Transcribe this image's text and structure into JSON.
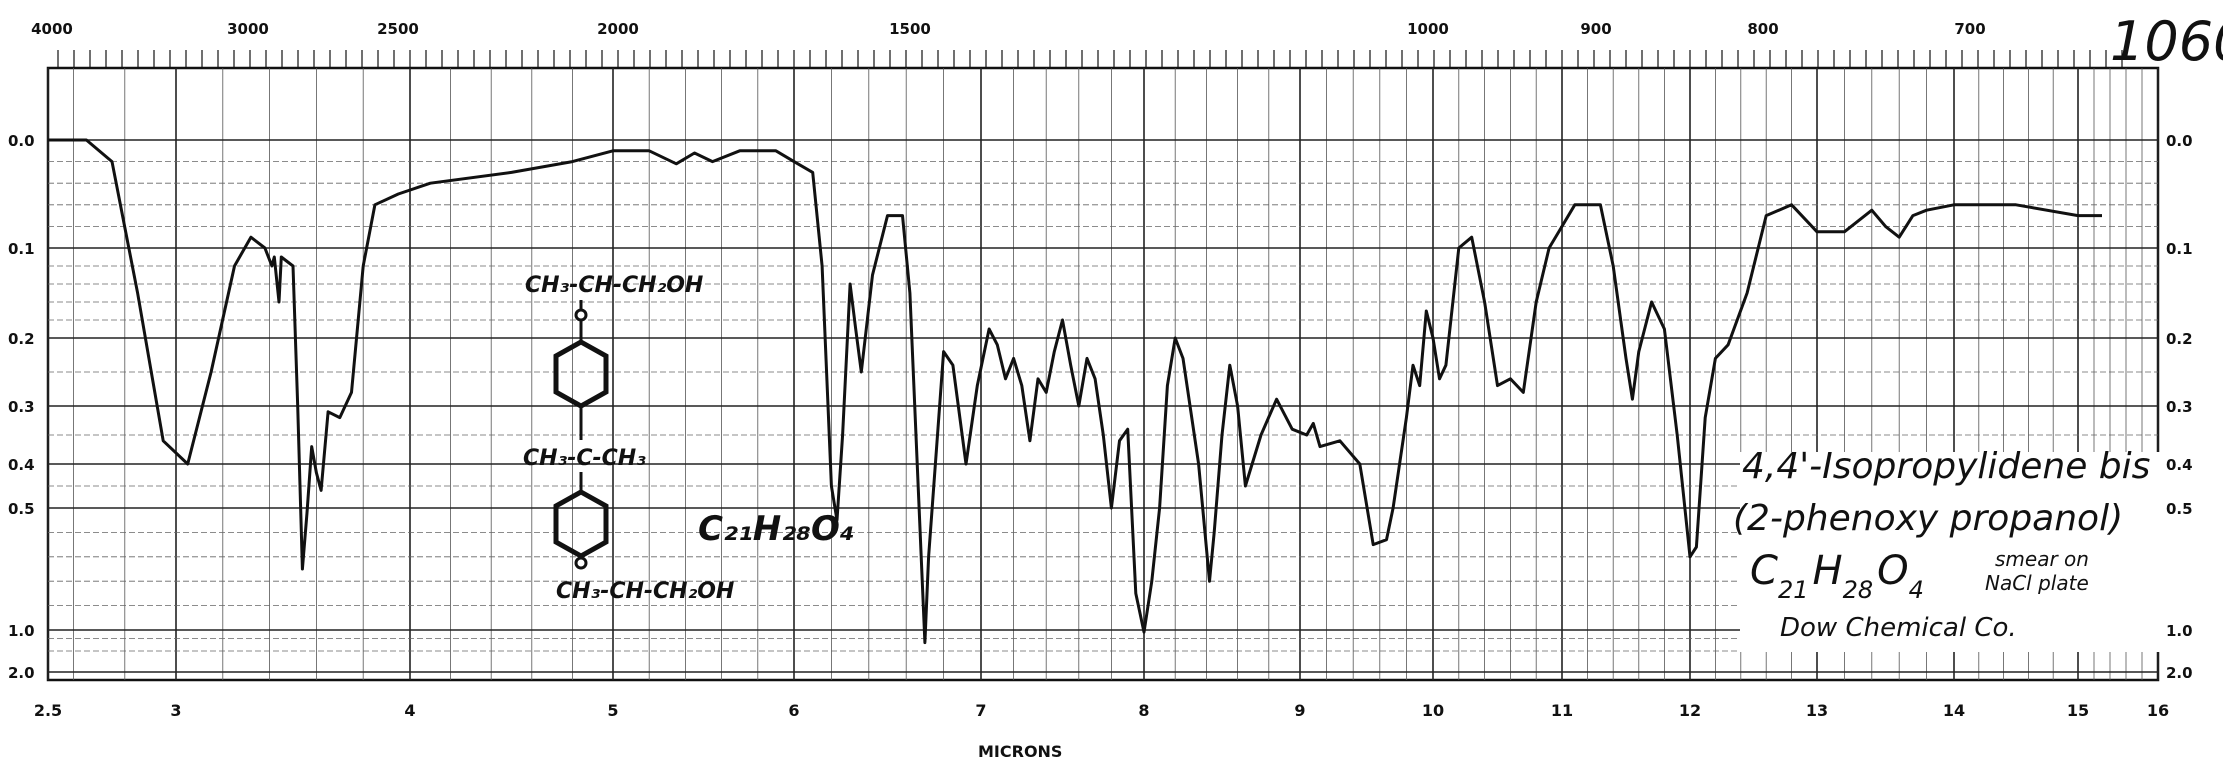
{
  "sheet_number": "1060",
  "chart_data": {
    "type": "line",
    "title": "",
    "xlabel": "MICRONS",
    "ylabel": "",
    "x_axis": {
      "unit": "microns",
      "range": [
        2.5,
        16
      ],
      "ticks": [
        "2.5",
        "3",
        "4",
        "5",
        "6",
        "7",
        "8",
        "9",
        "10",
        "11",
        "12",
        "13",
        "14",
        "15",
        "16"
      ]
    },
    "top_axis": {
      "unit": "wavenumber (cm-1)",
      "ticks": [
        "4000",
        "3000",
        "2500",
        "2000",
        "1500",
        "1000",
        "900",
        "800",
        "700"
      ]
    },
    "y_axis": {
      "unit": "absorbance",
      "scale": "nonlinear",
      "range": [
        0,
        2.0
      ],
      "left_ticks": [
        "0.0",
        "0.1",
        "0.2",
        "0.3",
        "0.4",
        "0.5",
        "1.0",
        "2.0"
      ],
      "right_ticks": [
        "0.0",
        "0.1",
        "0.2",
        "0.3",
        "0.4",
        "0.5",
        "1.0",
        "2.0"
      ]
    },
    "grid": true,
    "series": [
      {
        "points": [
          [
            2.5,
            0.0
          ],
          [
            2.65,
            0.0
          ],
          [
            2.75,
            0.02
          ],
          [
            2.85,
            0.15
          ],
          [
            2.95,
            0.36
          ],
          [
            3.05,
            0.4
          ],
          [
            3.15,
            0.25
          ],
          [
            3.25,
            0.12
          ],
          [
            3.32,
            0.09
          ],
          [
            3.38,
            0.1
          ],
          [
            3.41,
            0.12
          ],
          [
            3.42,
            0.11
          ],
          [
            3.44,
            0.16
          ],
          [
            3.45,
            0.11
          ],
          [
            3.5,
            0.12
          ],
          [
            3.52,
            0.3
          ],
          [
            3.54,
            0.75
          ],
          [
            3.56,
            0.52
          ],
          [
            3.58,
            0.37
          ],
          [
            3.6,
            0.42
          ],
          [
            3.62,
            0.46
          ],
          [
            3.65,
            0.31
          ],
          [
            3.7,
            0.32
          ],
          [
            3.75,
            0.28
          ],
          [
            3.8,
            0.12
          ],
          [
            3.85,
            0.06
          ],
          [
            3.95,
            0.05
          ],
          [
            4.1,
            0.04
          ],
          [
            4.5,
            0.03
          ],
          [
            4.8,
            0.02
          ],
          [
            5.0,
            0.01
          ],
          [
            5.2,
            0.01
          ],
          [
            5.35,
            0.022
          ],
          [
            5.45,
            0.012
          ],
          [
            5.55,
            0.02
          ],
          [
            5.7,
            0.01
          ],
          [
            5.9,
            0.01
          ],
          [
            6.0,
            0.02
          ],
          [
            6.1,
            0.03
          ],
          [
            6.15,
            0.12
          ],
          [
            6.2,
            0.45
          ],
          [
            6.23,
            0.55
          ],
          [
            6.26,
            0.35
          ],
          [
            6.3,
            0.14
          ],
          [
            6.33,
            0.19
          ],
          [
            6.36,
            0.25
          ],
          [
            6.42,
            0.13
          ],
          [
            6.5,
            0.07
          ],
          [
            6.58,
            0.07
          ],
          [
            6.62,
            0.15
          ],
          [
            6.68,
            0.7
          ],
          [
            6.7,
            1.3
          ],
          [
            6.72,
            0.7
          ],
          [
            6.8,
            0.22
          ],
          [
            6.85,
            0.24
          ],
          [
            6.92,
            0.4
          ],
          [
            6.98,
            0.27
          ],
          [
            7.05,
            0.19
          ],
          [
            7.1,
            0.21
          ],
          [
            7.15,
            0.26
          ],
          [
            7.2,
            0.23
          ],
          [
            7.25,
            0.27
          ],
          [
            7.3,
            0.36
          ],
          [
            7.35,
            0.26
          ],
          [
            7.4,
            0.28
          ],
          [
            7.45,
            0.22
          ],
          [
            7.5,
            0.18
          ],
          [
            7.55,
            0.24
          ],
          [
            7.6,
            0.3
          ],
          [
            7.65,
            0.23
          ],
          [
            7.7,
            0.26
          ],
          [
            7.75,
            0.35
          ],
          [
            7.8,
            0.5
          ],
          [
            7.85,
            0.36
          ],
          [
            7.9,
            0.34
          ],
          [
            7.95,
            0.85
          ],
          [
            8.0,
            1.05
          ],
          [
            8.05,
            0.8
          ],
          [
            8.1,
            0.5
          ],
          [
            8.15,
            0.27
          ],
          [
            8.2,
            0.2
          ],
          [
            8.25,
            0.23
          ],
          [
            8.35,
            0.4
          ],
          [
            8.42,
            0.8
          ],
          [
            8.45,
            0.6
          ],
          [
            8.5,
            0.35
          ],
          [
            8.55,
            0.24
          ],
          [
            8.6,
            0.3
          ],
          [
            8.65,
            0.45
          ],
          [
            8.75,
            0.35
          ],
          [
            8.85,
            0.29
          ],
          [
            8.95,
            0.34
          ],
          [
            9.05,
            0.35
          ],
          [
            9.1,
            0.33
          ],
          [
            9.15,
            0.37
          ],
          [
            9.3,
            0.36
          ],
          [
            9.45,
            0.4
          ],
          [
            9.55,
            0.65
          ],
          [
            9.65,
            0.63
          ],
          [
            9.7,
            0.5
          ],
          [
            9.8,
            0.32
          ],
          [
            9.85,
            0.24
          ],
          [
            9.9,
            0.27
          ],
          [
            9.95,
            0.17
          ],
          [
            10.0,
            0.2
          ],
          [
            10.05,
            0.26
          ],
          [
            10.1,
            0.24
          ],
          [
            10.2,
            0.1
          ],
          [
            10.3,
            0.09
          ],
          [
            10.4,
            0.16
          ],
          [
            10.5,
            0.27
          ],
          [
            10.6,
            0.26
          ],
          [
            10.7,
            0.28
          ],
          [
            10.8,
            0.16
          ],
          [
            10.9,
            0.1
          ],
          [
            11.0,
            0.08
          ],
          [
            11.1,
            0.06
          ],
          [
            11.3,
            0.06
          ],
          [
            11.4,
            0.12
          ],
          [
            11.5,
            0.23
          ],
          [
            11.55,
            0.29
          ],
          [
            11.6,
            0.22
          ],
          [
            11.7,
            0.16
          ],
          [
            11.8,
            0.19
          ],
          [
            11.9,
            0.35
          ],
          [
            12.0,
            0.7
          ],
          [
            12.05,
            0.66
          ],
          [
            12.12,
            0.32
          ],
          [
            12.2,
            0.23
          ],
          [
            12.3,
            0.21
          ],
          [
            12.45,
            0.15
          ],
          [
            12.6,
            0.07
          ],
          [
            12.8,
            0.06
          ],
          [
            13.0,
            0.085
          ],
          [
            13.2,
            0.085
          ],
          [
            13.4,
            0.065
          ],
          [
            13.5,
            0.08
          ],
          [
            13.6,
            0.09
          ],
          [
            13.7,
            0.07
          ],
          [
            13.8,
            0.065
          ],
          [
            14.0,
            0.06
          ],
          [
            14.5,
            0.06
          ],
          [
            15.0,
            0.07
          ],
          [
            15.3,
            0.07
          ]
        ]
      }
    ]
  },
  "annotations": {
    "compound_line1": "4,4'-Isopropylidene  bis",
    "compound_line2": "(2-phenoxy propanol)",
    "formula_c": "C",
    "formula_c_sub": "21",
    "formula_h": "H",
    "formula_h_sub": "28",
    "formula_o": "O",
    "formula_o_sub": "4",
    "sample_line1": "smear on",
    "sample_line2": "NaCl plate",
    "source": "Dow Chemical Co.",
    "structure_top": "CH₃-CH-CH₂OH",
    "structure_mid": "CH₃-C-CH₃",
    "structure_bottom": "CH₃-CH-CH₂OH",
    "structure_formula": "C₂₁H₂₈O₄"
  }
}
